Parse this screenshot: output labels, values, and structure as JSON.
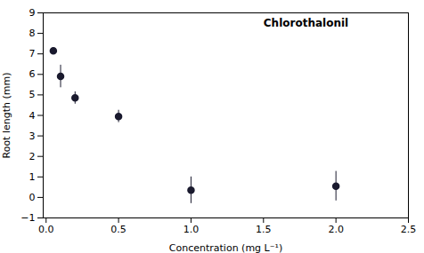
{
  "chart_data": {
    "type": "scatter",
    "x": [
      0.05,
      0.1,
      0.2,
      0.5,
      1.0,
      2.0
    ],
    "values": [
      7.15,
      5.9,
      4.85,
      3.95,
      0.35,
      0.55
    ],
    "yerr": [
      0.05,
      0.55,
      0.3,
      0.3,
      0.65,
      0.72
    ],
    "xlabel": "Concentration (mg L⁻¹)",
    "ylabel": "Root length (mm)",
    "annotations": [
      {
        "text": "Chlorothalonil",
        "x": 1.5,
        "y": 8.7
      }
    ],
    "xlim": [
      -0.02,
      2.5
    ],
    "xticks": [
      0,
      0.5,
      1,
      1.5,
      2,
      2.5
    ],
    "ylim": [
      -1,
      9
    ],
    "yticks": [
      -1,
      0,
      1,
      2,
      3,
      4,
      5,
      6,
      7,
      8,
      9
    ],
    "color": "#1a1a2e",
    "marker": "circle",
    "grid": false
  }
}
